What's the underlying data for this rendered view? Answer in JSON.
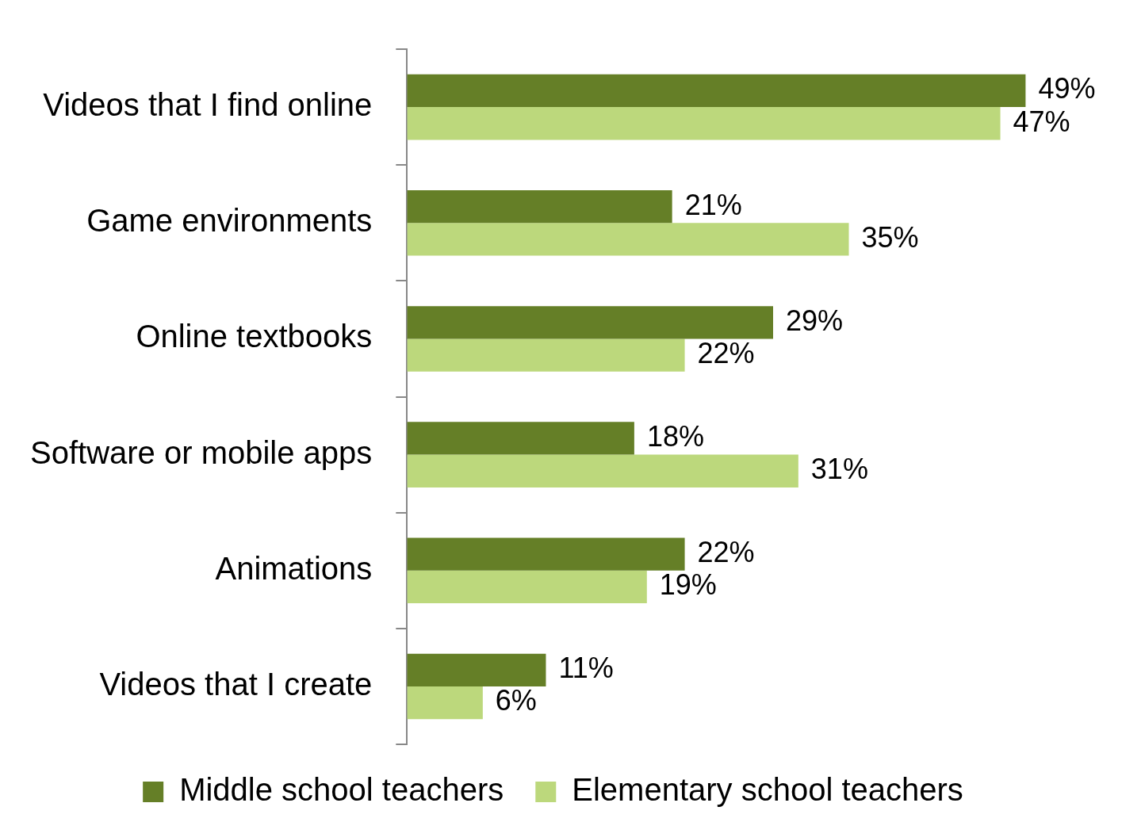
{
  "chart_data": {
    "type": "bar",
    "orientation": "horizontal",
    "categories": [
      "Videos that I find online",
      "Game environments",
      "Online textbooks",
      "Software or mobile apps",
      "Animations",
      "Videos that I create"
    ],
    "series": [
      {
        "name": "Middle school teachers",
        "color": "#657f27",
        "values": [
          49,
          21,
          29,
          18,
          22,
          11
        ],
        "value_labels": [
          "49%",
          "21%",
          "29%",
          "18%",
          "22%",
          "11%"
        ]
      },
      {
        "name": "Elementary school teachers",
        "color": "#bcd87c",
        "values": [
          47,
          35,
          22,
          31,
          19,
          6
        ],
        "value_labels": [
          "47%",
          "35%",
          "22%",
          "31%",
          "19%",
          "6%"
        ]
      }
    ],
    "legend": "bottom",
    "grid": false
  }
}
